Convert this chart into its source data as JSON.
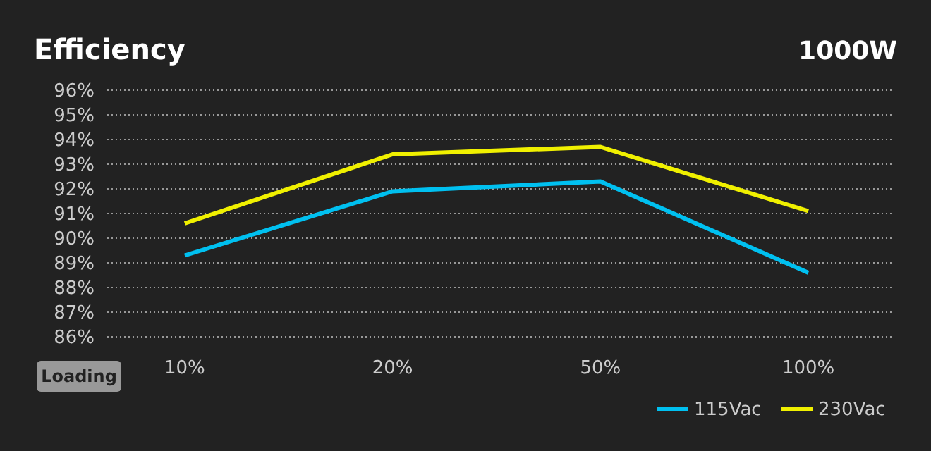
{
  "chart_data": {
    "type": "line",
    "title": "Efficiency",
    "subtitle": "1000W",
    "xlabel": "Loading",
    "categories": [
      "10%",
      "20%",
      "50%",
      "100%"
    ],
    "series": [
      {
        "name": "115Vac",
        "color": "#00c0f0",
        "values": [
          89.3,
          91.9,
          92.3,
          88.6
        ]
      },
      {
        "name": "230Vac",
        "color": "#f0f000",
        "values": [
          90.6,
          93.4,
          93.7,
          91.1
        ]
      }
    ],
    "ylim": [
      86,
      96
    ],
    "yticks": [
      {
        "value": 86,
        "label": "86%"
      },
      {
        "value": 87,
        "label": "87%"
      },
      {
        "value": 88,
        "label": "88%"
      },
      {
        "value": 89,
        "label": "89%"
      },
      {
        "value": 90,
        "label": "90%"
      },
      {
        "value": 91,
        "label": "91%"
      },
      {
        "value": 92,
        "label": "92%"
      },
      {
        "value": 93,
        "label": "93%"
      },
      {
        "value": 94,
        "label": "94%"
      },
      {
        "value": 95,
        "label": "95%"
      },
      {
        "value": 96,
        "label": "96%"
      }
    ],
    "grid": "y",
    "legend": "bottom right",
    "marker": "none",
    "line_style": "solid"
  }
}
